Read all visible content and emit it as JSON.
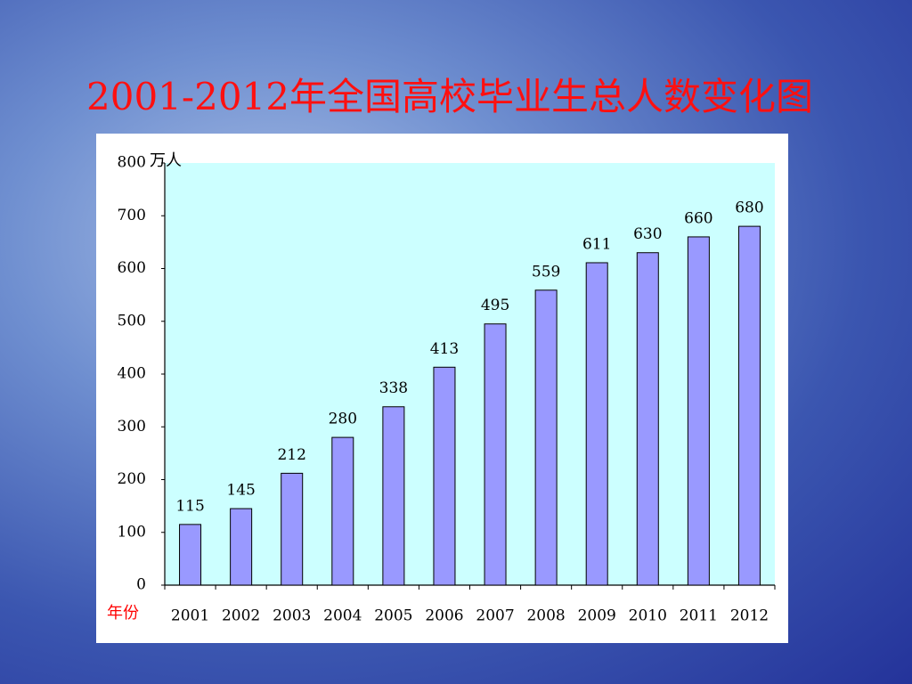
{
  "chart_data": {
    "type": "bar",
    "title": "2001-2012年全国高校毕业生总人数变化图",
    "y_label": "万人",
    "x_label": "年份",
    "categories": [
      "2001",
      "2002",
      "2003",
      "2004",
      "2005",
      "2006",
      "2007",
      "2008",
      "2009",
      "2010",
      "2011",
      "2012"
    ],
    "values": [
      115,
      145,
      212,
      280,
      338,
      413,
      495,
      559,
      611,
      630,
      660,
      680
    ],
    "color": "#9999ff",
    "ylim": [
      0,
      800
    ],
    "yticks": [
      0,
      100,
      200,
      300,
      400,
      500,
      600,
      700,
      800
    ],
    "grid": false
  }
}
